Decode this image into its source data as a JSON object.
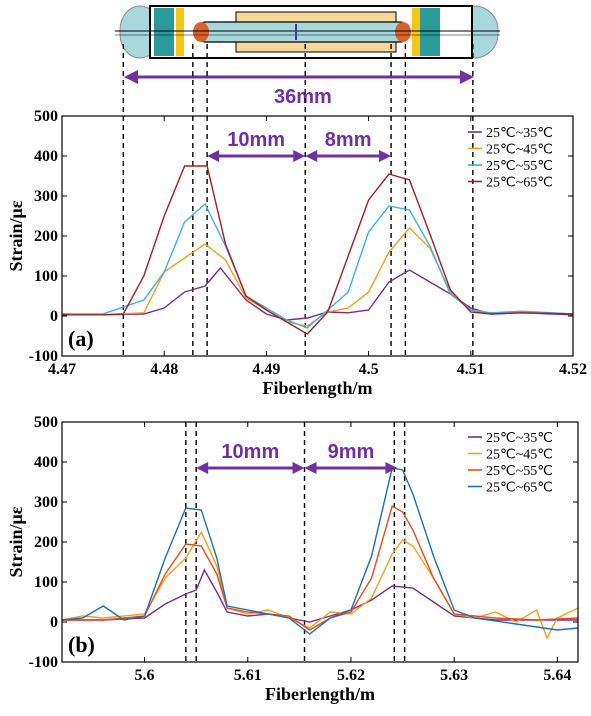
{
  "sensor_diagram": {
    "total_length_label": "36mm",
    "colors": {
      "cap": "#a8d8dc",
      "tube": "#a8d8dc",
      "outer": "#ffffff",
      "yellow": "#f5c518",
      "teal": "#2a9a9a",
      "sleeve": "#f8d89a",
      "bead": "#d9622b",
      "arrow": "#7030a0"
    }
  },
  "chart_data": [
    {
      "type": "line",
      "panel_label": "(a)",
      "xlabel": "Fiberlength/m",
      "ylabel": "Strain/με",
      "xlim": [
        4.47,
        4.52
      ],
      "ylim": [
        -100,
        500
      ],
      "xticks": [
        "4.47",
        "4.48",
        "4.49",
        "4.5",
        "4.51",
        "4.52"
      ],
      "xtick_values": [
        4.47,
        4.48,
        4.49,
        4.5,
        4.51,
        4.52
      ],
      "yticks": [
        "-100",
        "0",
        "100",
        "200",
        "300",
        "400",
        "500"
      ],
      "ytick_values": [
        -100,
        0,
        100,
        200,
        300,
        400,
        500
      ],
      "legend_position": "top-right",
      "vlines": [
        4.476,
        4.4828,
        4.4842,
        4.4938,
        4.5022,
        4.5036,
        4.5102
      ],
      "dimensions": [
        {
          "label": "10mm",
          "from": 4.4842,
          "to": 4.4938,
          "y": 400
        },
        {
          "label": "8mm",
          "from": 4.4938,
          "to": 4.5022,
          "y": 400
        }
      ],
      "series": [
        {
          "name": "25℃~35℃",
          "color": "#7b2d8e",
          "x": [
            4.47,
            4.474,
            4.478,
            4.48,
            4.482,
            4.484,
            4.4855,
            4.488,
            4.49,
            4.492,
            4.494,
            4.496,
            4.498,
            4.5,
            4.502,
            4.504,
            4.506,
            4.508,
            4.51,
            4.512,
            4.515,
            4.52
          ],
          "y": [
            5,
            3,
            5,
            20,
            60,
            75,
            120,
            40,
            5,
            -10,
            -5,
            10,
            8,
            15,
            85,
            115,
            85,
            55,
            20,
            5,
            8,
            3
          ]
        },
        {
          "name": "25℃~45℃",
          "color": "#f0a020",
          "x": [
            4.47,
            4.474,
            4.478,
            4.48,
            4.482,
            4.484,
            4.486,
            4.488,
            4.49,
            4.492,
            4.494,
            4.496,
            4.498,
            4.5,
            4.502,
            4.504,
            4.506,
            4.508,
            4.51,
            4.512,
            4.515,
            4.52
          ],
          "y": [
            5,
            3,
            8,
            110,
            145,
            180,
            140,
            45,
            15,
            -15,
            -25,
            10,
            20,
            60,
            160,
            220,
            170,
            60,
            15,
            5,
            10,
            5
          ]
        },
        {
          "name": "25℃~55℃",
          "color": "#3fb0e0",
          "x": [
            4.47,
            4.474,
            4.478,
            4.48,
            4.482,
            4.484,
            4.486,
            4.488,
            4.49,
            4.492,
            4.494,
            4.496,
            4.498,
            4.5,
            4.502,
            4.504,
            4.506,
            4.508,
            4.51,
            4.512,
            4.515,
            4.52
          ],
          "y": [
            5,
            5,
            40,
            110,
            235,
            280,
            175,
            50,
            20,
            -10,
            -30,
            15,
            60,
            210,
            275,
            265,
            175,
            55,
            15,
            8,
            12,
            5
          ]
        },
        {
          "name": "25℃~65℃",
          "color": "#a0202a",
          "x": [
            4.47,
            4.474,
            4.476,
            4.478,
            4.48,
            4.482,
            4.4842,
            4.486,
            4.488,
            4.49,
            4.492,
            4.494,
            4.496,
            4.498,
            4.5,
            4.502,
            4.504,
            4.506,
            4.508,
            4.51,
            4.512,
            4.515,
            4.52
          ],
          "y": [
            3,
            3,
            5,
            100,
            250,
            375,
            375,
            180,
            50,
            15,
            -15,
            -45,
            10,
            150,
            290,
            355,
            340,
            205,
            65,
            10,
            5,
            8,
            5
          ]
        }
      ]
    },
    {
      "type": "line",
      "panel_label": "(b)",
      "xlabel": "Fiberlength/m",
      "ylabel": "Strain/με",
      "xlim": [
        5.592,
        5.642
      ],
      "ylim": [
        -100,
        500
      ],
      "xticks": [
        "5.6",
        "5.61",
        "5.62",
        "5.63",
        "5.64"
      ],
      "xtick_values": [
        5.6,
        5.61,
        5.62,
        5.63,
        5.64
      ],
      "yticks": [
        "-100",
        "0",
        "100",
        "200",
        "300",
        "400",
        "500"
      ],
      "ytick_values": [
        -100,
        0,
        100,
        200,
        300,
        400,
        500
      ],
      "legend_position": "top-right",
      "vlines": [
        5.604,
        5.605,
        5.6155,
        5.6242,
        5.6252
      ],
      "dimensions": [
        {
          "label": "10mm",
          "from": 5.605,
          "to": 5.6155,
          "y": 385
        },
        {
          "label": "9mm",
          "from": 5.6155,
          "to": 5.6245,
          "y": 385
        }
      ],
      "series": [
        {
          "name": "25℃~35℃",
          "color": "#7b2d8e",
          "x": [
            5.592,
            5.596,
            5.6,
            5.602,
            5.604,
            5.605,
            5.6058,
            5.607,
            5.608,
            5.61,
            5.612,
            5.614,
            5.616,
            5.618,
            5.62,
            5.622,
            5.624,
            5.626,
            5.628,
            5.63,
            5.634,
            5.638,
            5.642
          ],
          "y": [
            5,
            5,
            10,
            45,
            70,
            80,
            130,
            75,
            25,
            15,
            20,
            10,
            0,
            15,
            30,
            55,
            90,
            85,
            50,
            15,
            5,
            5,
            5
          ]
        },
        {
          "name": "25℃~45℃",
          "color": "#f0a020",
          "x": [
            5.592,
            5.594,
            5.596,
            5.598,
            5.6,
            5.602,
            5.604,
            5.6055,
            5.607,
            5.608,
            5.61,
            5.612,
            5.614,
            5.616,
            5.618,
            5.62,
            5.622,
            5.624,
            5.625,
            5.626,
            5.628,
            5.63,
            5.632,
            5.634,
            5.636,
            5.638,
            5.639,
            5.64,
            5.642
          ],
          "y": [
            5,
            15,
            10,
            15,
            20,
            110,
            160,
            225,
            140,
            35,
            20,
            30,
            10,
            -15,
            25,
            20,
            60,
            170,
            205,
            190,
            110,
            20,
            10,
            25,
            0,
            30,
            -40,
            10,
            35
          ]
        },
        {
          "name": "25℃~55℃",
          "color": "#e0501a",
          "x": [
            5.592,
            5.596,
            5.6,
            5.602,
            5.604,
            5.6055,
            5.607,
            5.608,
            5.61,
            5.612,
            5.614,
            5.616,
            5.618,
            5.62,
            5.622,
            5.624,
            5.625,
            5.626,
            5.628,
            5.63,
            5.634,
            5.638,
            5.642
          ],
          "y": [
            5,
            5,
            15,
            120,
            195,
            190,
            120,
            35,
            25,
            20,
            15,
            -20,
            10,
            25,
            110,
            290,
            275,
            230,
            110,
            20,
            10,
            5,
            10
          ]
        },
        {
          "name": "25℃~65℃",
          "color": "#1f6fb0",
          "x": [
            5.592,
            5.594,
            5.596,
            5.598,
            5.6,
            5.602,
            5.604,
            5.6055,
            5.607,
            5.608,
            5.61,
            5.612,
            5.614,
            5.616,
            5.618,
            5.62,
            5.622,
            5.624,
            5.625,
            5.626,
            5.628,
            5.63,
            5.632,
            5.636,
            5.64,
            5.642
          ],
          "y": [
            5,
            10,
            40,
            5,
            15,
            160,
            285,
            280,
            160,
            40,
            30,
            20,
            10,
            -30,
            10,
            30,
            165,
            385,
            380,
            320,
            165,
            30,
            10,
            -5,
            -20,
            -15
          ]
        }
      ]
    }
  ]
}
